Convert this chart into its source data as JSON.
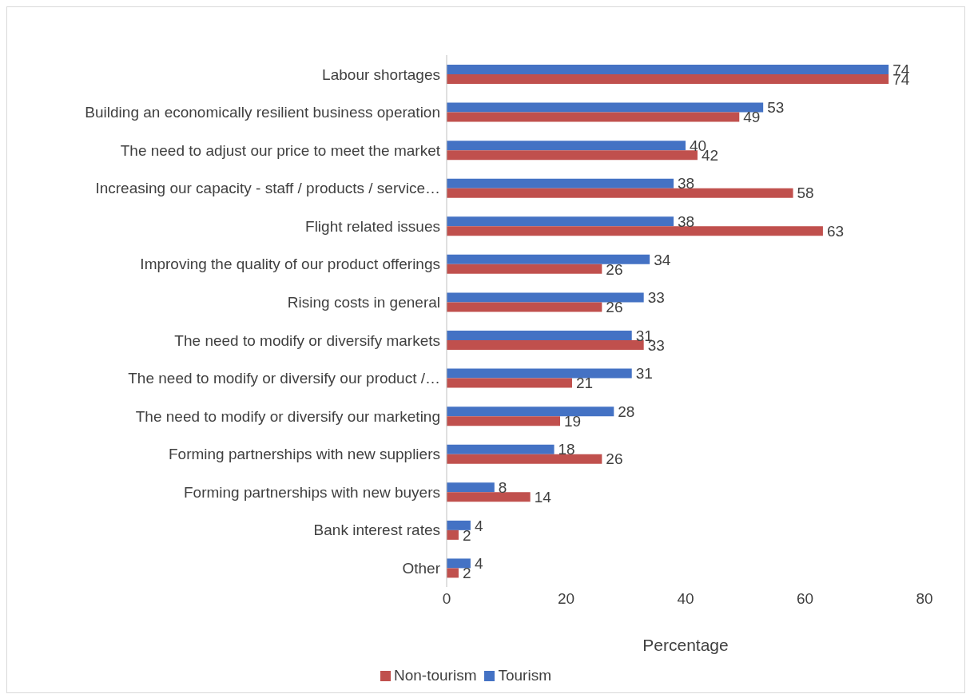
{
  "chart_data": {
    "type": "bar",
    "orientation": "horizontal",
    "xlabel": "Percentage",
    "categories": [
      "Labour shortages",
      "Building an economically resilient business operation",
      "The need to adjust our price to meet the market",
      "Increasing our capacity - staff / products / service…",
      "Flight related issues ",
      "Improving the quality of our product offerings",
      "Rising costs in general",
      "The need to modify or diversify markets",
      "The need to modify or diversify our product /…",
      "The need to modify or diversify our marketing",
      "Forming partnerships with new suppliers",
      "Forming partnerships with new buyers",
      "Bank interest rates",
      "Other "
    ],
    "series": [
      {
        "name": "Tourism",
        "color": "#4472c4",
        "values": [
          74,
          53,
          40,
          38,
          38,
          34,
          33,
          31,
          31,
          28,
          18,
          8,
          4,
          4
        ]
      },
      {
        "name": "Non-tourism",
        "color": "#c0504d",
        "values": [
          74,
          49,
          42,
          58,
          63,
          26,
          26,
          33,
          21,
          19,
          26,
          14,
          2,
          2
        ]
      }
    ],
    "xlim": [
      0,
      80
    ],
    "xticks": [
      0,
      20,
      40,
      60,
      80
    ],
    "grid": false,
    "legend": "bottom",
    "data_labels": true
  }
}
